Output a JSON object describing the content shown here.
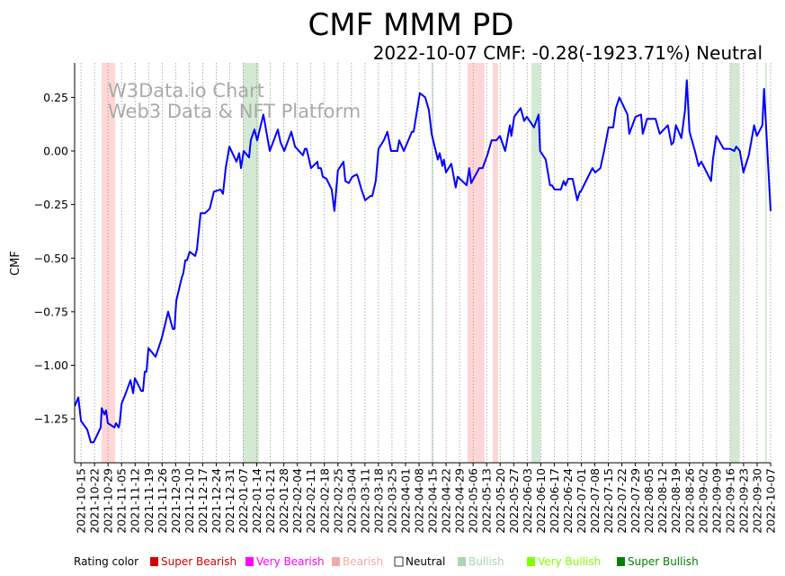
{
  "chart_data": {
    "type": "line",
    "title": "CMF MMM PD",
    "subtitle": "2022-10-07 CMF: -0.28(-1923.71%) Neutral",
    "watermark": [
      "W3Data.io Chart",
      "Web3 Data & NFT Platform"
    ],
    "ylabel": "CMF",
    "xlabel": "",
    "x_unit": "days since 2021-10-15",
    "xlim": [
      -3.3,
      357
    ],
    "ylim": [
      -1.455,
      0.411
    ],
    "yticks": [
      -1.25,
      -1.0,
      -0.75,
      -0.5,
      -0.25,
      0.0,
      0.25
    ],
    "ytick_labels": [
      "−1.25",
      "−1.00",
      "−0.75",
      "−0.50",
      "−0.25",
      "0.00",
      "0.25"
    ],
    "xtick_step_days": 7,
    "xtick_labels": [
      "2021-10-15",
      "2021-10-22",
      "2021-10-29",
      "2021-11-05",
      "2021-11-12",
      "2021-11-19",
      "2021-11-26",
      "2021-12-03",
      "2021-12-10",
      "2021-12-17",
      "2021-12-24",
      "2021-12-31",
      "2022-01-07",
      "2022-01-14",
      "2022-01-21",
      "2022-01-28",
      "2022-02-04",
      "2022-02-11",
      "2022-02-18",
      "2022-02-25",
      "2022-03-04",
      "2022-03-11",
      "2022-03-18",
      "2022-03-25",
      "2022-04-01",
      "2022-04-08",
      "2022-04-15",
      "2022-04-22",
      "2022-04-29",
      "2022-05-06",
      "2022-05-13",
      "2022-05-20",
      "2022-05-27",
      "2022-06-03",
      "2022-06-10",
      "2022-06-17",
      "2022-06-24",
      "2022-07-01",
      "2022-07-08",
      "2022-07-15",
      "2022-07-22",
      "2022-07-29",
      "2022-08-05",
      "2022-08-12",
      "2022-08-19",
      "2022-08-26",
      "2022-09-02",
      "2022-09-09",
      "2022-09-16",
      "2022-09-23",
      "2022-09-30",
      "2022-10-07"
    ],
    "grid": "vertical dotted",
    "line_color": "#0000ff",
    "series": [
      {
        "name": "CMF",
        "points": [
          [
            -3.2,
            -1.19
          ],
          [
            -1.4,
            -1.15
          ],
          [
            0,
            -1.26
          ],
          [
            3.2,
            -1.3
          ],
          [
            5.1,
            -1.36
          ],
          [
            6.5,
            -1.36
          ],
          [
            10.2,
            -1.29
          ],
          [
            10.7,
            -1.2
          ],
          [
            12.1,
            -1.23
          ],
          [
            13.0,
            -1.21
          ],
          [
            13.9,
            -1.27
          ],
          [
            17.3,
            -1.29
          ],
          [
            18.1,
            -1.27
          ],
          [
            19.5,
            -1.29
          ],
          [
            20.0,
            -1.27
          ],
          [
            21.0,
            -1.18
          ],
          [
            23.2,
            -1.13
          ],
          [
            25.6,
            -1.07
          ],
          [
            27.0,
            -1.13
          ],
          [
            27.9,
            -1.06
          ],
          [
            31.2,
            -1.12
          ],
          [
            32.1,
            -1.12
          ],
          [
            33.0,
            -1.03
          ],
          [
            33.9,
            -1.03
          ],
          [
            34.9,
            -0.92
          ],
          [
            38.6,
            -0.96
          ],
          [
            40.5,
            -0.91
          ],
          [
            41.9,
            -0.87
          ],
          [
            45.1,
            -0.75
          ],
          [
            47.5,
            -0.83
          ],
          [
            48.4,
            -0.83
          ],
          [
            49.3,
            -0.7
          ],
          [
            52.2,
            -0.59
          ],
          [
            53.0,
            -0.57
          ],
          [
            54.0,
            -0.51
          ],
          [
            54.9,
            -0.51
          ],
          [
            56.3,
            -0.47
          ],
          [
            59.1,
            -0.49
          ],
          [
            60.0,
            -0.46
          ],
          [
            61.9,
            -0.29
          ],
          [
            64.2,
            -0.29
          ],
          [
            66.6,
            -0.27
          ],
          [
            68.8,
            -0.19
          ],
          [
            72.2,
            -0.18
          ],
          [
            73.5,
            -0.2
          ],
          [
            74.9,
            -0.08
          ],
          [
            76.8,
            0.02
          ],
          [
            80.5,
            -0.05
          ],
          [
            81.9,
            -0.01
          ],
          [
            82.8,
            -0.08
          ],
          [
            84.2,
            0.0
          ],
          [
            87.0,
            -0.03
          ],
          [
            87.9,
            0.05
          ],
          [
            89.8,
            0.1
          ],
          [
            91.2,
            0.05
          ],
          [
            94.4,
            0.17
          ],
          [
            97.7,
            0.0
          ],
          [
            101.9,
            0.1
          ],
          [
            103.3,
            0.04
          ],
          [
            105.2,
            0.0
          ],
          [
            108.9,
            0.09
          ],
          [
            110.8,
            0.02
          ],
          [
            114.9,
            -0.02
          ],
          [
            115.9,
            0.01
          ],
          [
            116.8,
            0.01
          ],
          [
            119.1,
            -0.08
          ],
          [
            122.4,
            -0.05
          ],
          [
            122.8,
            -0.08
          ],
          [
            124.2,
            -0.08
          ],
          [
            125.2,
            -0.12
          ],
          [
            127.1,
            -0.13
          ],
          [
            129.8,
            -0.18
          ],
          [
            131.2,
            -0.28
          ],
          [
            133.0,
            -0.09
          ],
          [
            135.9,
            -0.05
          ],
          [
            136.8,
            -0.14
          ],
          [
            138.6,
            -0.15
          ],
          [
            140.5,
            -0.12
          ],
          [
            142.8,
            -0.11
          ],
          [
            143.3,
            -0.12
          ],
          [
            145.2,
            -0.18
          ],
          [
            147.1,
            -0.23
          ],
          [
            149.8,
            -0.21
          ],
          [
            150.8,
            -0.21
          ],
          [
            152.6,
            -0.14
          ],
          [
            154.0,
            0.01
          ],
          [
            156.8,
            0.05
          ],
          [
            158.6,
            0.09
          ],
          [
            160.5,
            0.0
          ],
          [
            163.8,
            0.0
          ],
          [
            164.7,
            0.05
          ],
          [
            167.1,
            0.0
          ],
          [
            171.3,
            0.09
          ],
          [
            172.2,
            0.09
          ],
          [
            175.4,
            0.27
          ],
          [
            178.2,
            0.25
          ],
          [
            180.1,
            0.19
          ],
          [
            181.5,
            0.08
          ],
          [
            184.7,
            -0.04
          ],
          [
            185.7,
            -0.01
          ],
          [
            187.1,
            -0.07
          ],
          [
            187.9,
            -0.04
          ],
          [
            188.9,
            -0.1
          ],
          [
            191.7,
            -0.06
          ],
          [
            194.0,
            -0.17
          ],
          [
            195.0,
            -0.12
          ],
          [
            199.6,
            -0.16
          ],
          [
            201.0,
            -0.08
          ],
          [
            202.0,
            -0.15
          ],
          [
            206.2,
            -0.08
          ],
          [
            207.9,
            -0.08
          ],
          [
            210.3,
            -0.02
          ],
          [
            212.6,
            0.05
          ],
          [
            215.0,
            0.05
          ],
          [
            216.9,
            0.07
          ],
          [
            219.6,
            0.0
          ],
          [
            222.0,
            0.12
          ],
          [
            222.8,
            0.07
          ],
          [
            224.3,
            0.16
          ],
          [
            227.6,
            0.2
          ],
          [
            229.4,
            0.14
          ],
          [
            230.8,
            0.16
          ],
          [
            234.5,
            0.11
          ],
          [
            236.9,
            0.17
          ],
          [
            237.7,
            0.0
          ],
          [
            240.6,
            -0.04
          ],
          [
            242.8,
            -0.16
          ],
          [
            243.8,
            -0.16
          ],
          [
            245.2,
            -0.18
          ],
          [
            248.4,
            -0.18
          ],
          [
            249.9,
            -0.14
          ],
          [
            250.8,
            -0.16
          ],
          [
            252.2,
            -0.13
          ],
          [
            254.5,
            -0.13
          ],
          [
            256.9,
            -0.23
          ],
          [
            258.2,
            -0.19
          ],
          [
            258.7,
            -0.19
          ],
          [
            262.0,
            -0.13
          ],
          [
            264.8,
            -0.08
          ],
          [
            266.2,
            -0.1
          ],
          [
            268.9,
            -0.08
          ],
          [
            270.8,
            0.0
          ],
          [
            273.1,
            0.11
          ],
          [
            275.5,
            0.11
          ],
          [
            276.9,
            0.2
          ],
          [
            278.7,
            0.25
          ],
          [
            282.9,
            0.17
          ],
          [
            283.8,
            0.08
          ],
          [
            287.1,
            0.16
          ],
          [
            289.9,
            0.17
          ],
          [
            290.8,
            0.08
          ],
          [
            293.1,
            0.15
          ],
          [
            297.4,
            0.15
          ],
          [
            299.6,
            0.08
          ],
          [
            303.8,
            0.12
          ],
          [
            305.7,
            0.03
          ],
          [
            306.7,
            0.04
          ],
          [
            308.0,
            0.12
          ],
          [
            310.8,
            0.06
          ],
          [
            312.7,
            0.19
          ],
          [
            313.6,
            0.33
          ],
          [
            315.0,
            0.09
          ],
          [
            317.8,
            0.0
          ],
          [
            319.7,
            -0.07
          ],
          [
            321.1,
            -0.05
          ],
          [
            323.4,
            -0.09
          ],
          [
            326.2,
            -0.14
          ],
          [
            327.1,
            -0.04
          ],
          [
            328.9,
            0.07
          ],
          [
            332.7,
            0.01
          ],
          [
            336.0,
            0.01
          ],
          [
            338.2,
            0.0
          ],
          [
            339.2,
            0.02
          ],
          [
            341.1,
            0.0
          ],
          [
            342.9,
            -0.1
          ],
          [
            345.7,
            -0.02
          ],
          [
            348.5,
            0.12
          ],
          [
            349.9,
            0.07
          ],
          [
            352.7,
            0.12
          ],
          [
            353.6,
            0.29
          ],
          [
            357,
            -0.28
          ]
        ]
      }
    ],
    "rating_bands": [
      {
        "rating": "Bearish",
        "from": 10.7,
        "to": 17.7
      },
      {
        "rating": "Bullish",
        "from": 83.8,
        "to": 92.1
      },
      {
        "rating": "Bullish",
        "from": 181.5,
        "to": 182.4
      },
      {
        "rating": "Bearish",
        "from": 200.1,
        "to": 208.9
      },
      {
        "rating": "Bearish",
        "from": 213.1,
        "to": 215.9
      },
      {
        "rating": "Bullish",
        "from": 233.1,
        "to": 237.8
      },
      {
        "rating": "Bullish",
        "from": 336.0,
        "to": 341.1
      },
      {
        "rating": "Bullish",
        "from": 354.1,
        "to": 355.0
      }
    ],
    "band_colors": {
      "Bearish": "#ffd6d6",
      "Bullish": "#d3e9d3"
    },
    "legend": {
      "title": "Rating color",
      "placement": "bottom",
      "items": [
        {
          "label": "Super Bearish",
          "color": "#d40000",
          "text_color": "#d40000"
        },
        {
          "label": "Very Bearish",
          "color": "#ff00ff",
          "text_color": "#ff00ff"
        },
        {
          "label": "Bearish",
          "color": "#f4a9a9",
          "text_color": "#f4a9a9"
        },
        {
          "label": "Neutral",
          "color": "#ffffff",
          "text_color": "#000000"
        },
        {
          "label": "Bullish",
          "color": "#acd6ac",
          "text_color": "#acd6ac"
        },
        {
          "label": "Very Bullish",
          "color": "#80ff00",
          "text_color": "#80ff00"
        },
        {
          "label": "Super Bullish",
          "color": "#008000",
          "text_color": "#008000"
        }
      ]
    }
  }
}
